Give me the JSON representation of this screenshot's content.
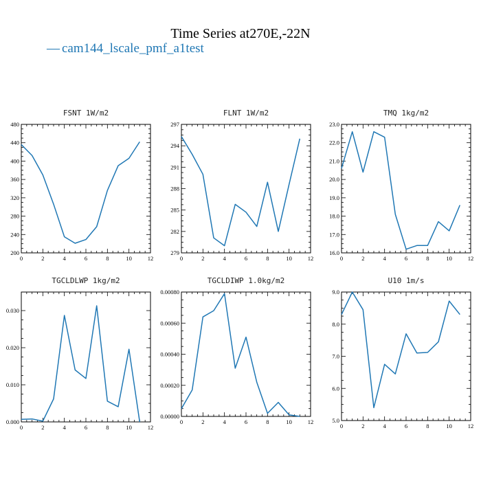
{
  "figure": {
    "title": "Time Series at270E,-22N",
    "legend": {
      "marker": "—",
      "label": "cam144_lscale_pmf_a1test"
    }
  },
  "colors": {
    "series": "#1f77b4",
    "legend_text": "#1f77b4",
    "axes": "#000000"
  },
  "chart_data": [
    {
      "type": "line",
      "title": "FSNT  1W/m2",
      "xlabel": "",
      "ylabel": "",
      "xlim": [
        0,
        12
      ],
      "ylim": [
        200,
        480
      ],
      "xticks": [
        0,
        2,
        4,
        6,
        8,
        10,
        12
      ],
      "xtick_labels": [
        "0",
        "2",
        "4",
        "6",
        "8",
        "10",
        "12"
      ],
      "yticks": [
        200,
        240,
        280,
        320,
        360,
        400,
        440,
        480
      ],
      "ytick_labels": [
        "200",
        "240",
        "280",
        "320",
        "360",
        "400",
        "440",
        "480"
      ],
      "series": [
        {
          "x": [
            0,
            1,
            2,
            3,
            4,
            5,
            6,
            7,
            8,
            9,
            10,
            11
          ],
          "y": [
            436,
            412,
            370,
            306,
            235,
            221,
            229,
            257,
            336,
            390,
            406,
            442
          ]
        }
      ]
    },
    {
      "type": "line",
      "title": "FLNT  1W/m2",
      "xlabel": "",
      "ylabel": "",
      "xlim": [
        0,
        12
      ],
      "ylim": [
        279,
        297
      ],
      "xticks": [
        0,
        2,
        4,
        6,
        8,
        10,
        12
      ],
      "xtick_labels": [
        "0",
        "2",
        "4",
        "6",
        "8",
        "10",
        "12"
      ],
      "yticks": [
        279,
        282,
        285,
        288,
        291,
        294,
        297
      ],
      "ytick_labels": [
        "279",
        "282",
        "285",
        "288",
        "291",
        "294",
        "297"
      ],
      "series": [
        {
          "x": [
            0,
            1,
            2,
            3,
            4,
            5,
            6,
            7,
            8,
            9,
            10,
            11
          ],
          "y": [
            295.3,
            292.8,
            290.0,
            281.1,
            280.0,
            285.8,
            284.7,
            282.7,
            288.9,
            282.0,
            288.6,
            295.0
          ]
        }
      ]
    },
    {
      "type": "line",
      "title": "TMQ  1kg/m2",
      "xlabel": "",
      "ylabel": "",
      "xlim": [
        0,
        12
      ],
      "ylim": [
        16.0,
        23.0
      ],
      "xticks": [
        0,
        2,
        4,
        6,
        8,
        10,
        12
      ],
      "xtick_labels": [
        "0",
        "2",
        "4",
        "6",
        "8",
        "10",
        "12"
      ],
      "yticks": [
        16,
        17,
        18,
        19,
        20,
        21,
        22,
        23
      ],
      "ytick_labels": [
        "16.0",
        "17.0",
        "18.0",
        "19.0",
        "20.0",
        "21.0",
        "22.0",
        "23.0"
      ],
      "series": [
        {
          "x": [
            0,
            1,
            2,
            3,
            4,
            5,
            6,
            7,
            8,
            9,
            10,
            11
          ],
          "y": [
            20.6,
            22.6,
            20.4,
            22.6,
            22.3,
            18.1,
            16.2,
            16.4,
            16.4,
            17.7,
            17.2,
            18.6
          ]
        }
      ]
    },
    {
      "type": "line",
      "title": "TGCLDLWP  1kg/m2",
      "xlabel": "",
      "ylabel": "",
      "xlim": [
        0,
        12
      ],
      "ylim": [
        0,
        0.035
      ],
      "xticks": [
        0,
        2,
        4,
        6,
        8,
        10,
        12
      ],
      "xtick_labels": [
        "0",
        "2",
        "4",
        "6",
        "8",
        "10",
        "12"
      ],
      "yticks": [
        0,
        0.01,
        0.02,
        0.03
      ],
      "ytick_labels": [
        "0.000",
        "0.010",
        "0.020",
        "0.030"
      ],
      "series": [
        {
          "x": [
            0,
            1,
            2,
            3,
            4,
            5,
            6,
            7,
            8,
            9,
            10,
            11
          ],
          "y": [
            0.0007,
            0.0008,
            0.0002,
            0.0062,
            0.0287,
            0.014,
            0.0117,
            0.0313,
            0.0056,
            0.0041,
            0.0196,
            0.0
          ]
        }
      ]
    },
    {
      "type": "line",
      "title": "TGCLDIWP  1.0kg/m2",
      "xlabel": "",
      "ylabel": "",
      "xlim": [
        0,
        12
      ],
      "ylim": [
        0,
        0.0008
      ],
      "xticks": [
        0,
        2,
        4,
        6,
        8,
        10,
        12
      ],
      "xtick_labels": [
        "0",
        "2",
        "4",
        "6",
        "8",
        "10",
        "12"
      ],
      "yticks": [
        0,
        0.0002,
        0.0004,
        0.0006,
        0.0008
      ],
      "ytick_labels": [
        "0.00000",
        "0.00020",
        "0.00040",
        "0.00060",
        "0.00080"
      ],
      "series": [
        {
          "x": [
            0,
            1,
            2,
            3,
            4,
            5,
            6,
            7,
            8,
            9,
            10,
            11
          ],
          "y": [
            5e-05,
            0.00017,
            0.00064,
            0.00068,
            0.00079,
            0.00031,
            0.00051,
            0.00022,
            2e-05,
            9e-05,
            1e-05,
            0.0
          ]
        }
      ]
    },
    {
      "type": "line",
      "title": "U10  1m/s",
      "xlabel": "",
      "ylabel": "",
      "xlim": [
        0,
        12
      ],
      "ylim": [
        5.0,
        9.0
      ],
      "xticks": [
        0,
        2,
        4,
        6,
        8,
        10,
        12
      ],
      "xtick_labels": [
        "0",
        "2",
        "4",
        "6",
        "8",
        "10",
        "12"
      ],
      "yticks": [
        5,
        6,
        7,
        8,
        9
      ],
      "ytick_labels": [
        "5.0",
        "6.0",
        "7.0",
        "8.0",
        "9.0"
      ],
      "series": [
        {
          "x": [
            0,
            1,
            2,
            3,
            4,
            5,
            6,
            7,
            8,
            9,
            10,
            11
          ],
          "y": [
            8.3,
            9.0,
            8.45,
            5.4,
            6.75,
            6.45,
            7.7,
            7.1,
            7.12,
            7.45,
            8.72,
            8.3
          ]
        }
      ]
    }
  ]
}
